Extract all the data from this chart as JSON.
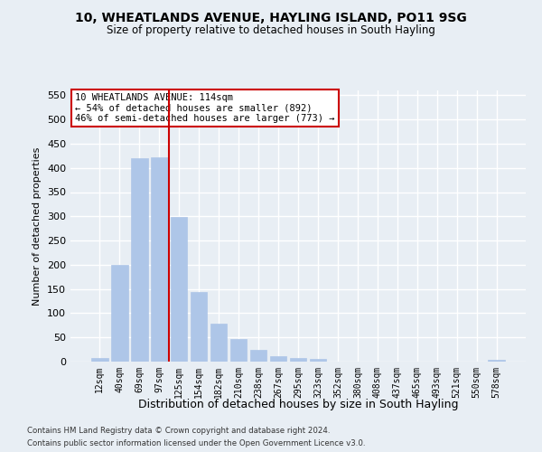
{
  "title1": "10, WHEATLANDS AVENUE, HAYLING ISLAND, PO11 9SG",
  "title2": "Size of property relative to detached houses in South Hayling",
  "xlabel": "Distribution of detached houses by size in South Hayling",
  "ylabel": "Number of detached properties",
  "categories": [
    "12sqm",
    "40sqm",
    "69sqm",
    "97sqm",
    "125sqm",
    "154sqm",
    "182sqm",
    "210sqm",
    "238sqm",
    "267sqm",
    "295sqm",
    "323sqm",
    "352sqm",
    "380sqm",
    "408sqm",
    "437sqm",
    "465sqm",
    "493sqm",
    "521sqm",
    "550sqm",
    "578sqm"
  ],
  "values": [
    8,
    200,
    420,
    422,
    298,
    143,
    78,
    47,
    25,
    12,
    8,
    5,
    0,
    0,
    0,
    0,
    0,
    0,
    0,
    0,
    4
  ],
  "bar_color": "#aec6e8",
  "bar_edge_color": "#aec6e8",
  "background_color": "#e8eef4",
  "grid_color": "#ffffff",
  "red_line_index": 4,
  "annotation_text": "10 WHEATLANDS AVENUE: 114sqm\n← 54% of detached houses are smaller (892)\n46% of semi-detached houses are larger (773) →",
  "annotation_box_color": "#ffffff",
  "annotation_box_edge_color": "#cc0000",
  "ylim": [
    0,
    560
  ],
  "yticks": [
    0,
    50,
    100,
    150,
    200,
    250,
    300,
    350,
    400,
    450,
    500,
    550
  ],
  "footnote1": "Contains HM Land Registry data © Crown copyright and database right 2024.",
  "footnote2": "Contains public sector information licensed under the Open Government Licence v3.0."
}
